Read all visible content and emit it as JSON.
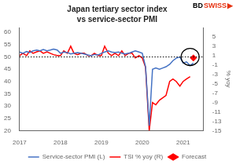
{
  "chart_data": {
    "type": "line",
    "title": "Japan tertiary sector index",
    "subtitle": "vs service-sector PMI",
    "y2label": "% yoy",
    "xlim": [
      2017.0,
      2021.5
    ],
    "xticks": [
      2017,
      2018,
      2019,
      2020,
      2021
    ],
    "ylim": [
      20,
      62
    ],
    "yticks": [
      20,
      25,
      30,
      35,
      40,
      45,
      50,
      55,
      60
    ],
    "y2lim": [
      -15,
      7
    ],
    "y2ticks": [
      -15,
      -13,
      -11,
      -9,
      -7,
      -5,
      -3,
      -1,
      1,
      3,
      5
    ],
    "grid": false,
    "legend": "bottom",
    "series": [
      {
        "name": "Service-sector PMI (L)",
        "type": "line",
        "color": "#4472C4",
        "axis": "y",
        "x": [
          2017.0,
          2017.08,
          2017.17,
          2017.25,
          2017.33,
          2017.42,
          2017.5,
          2017.58,
          2017.67,
          2017.75,
          2017.83,
          2017.92,
          2018.0,
          2018.08,
          2018.17,
          2018.25,
          2018.33,
          2018.42,
          2018.5,
          2018.58,
          2018.67,
          2018.75,
          2018.83,
          2018.92,
          2019.0,
          2019.08,
          2019.17,
          2019.25,
          2019.33,
          2019.42,
          2019.5,
          2019.58,
          2019.67,
          2019.75,
          2019.83,
          2019.92,
          2020.0,
          2020.08,
          2020.17,
          2020.25,
          2020.33,
          2020.42,
          2020.5,
          2020.58,
          2020.67,
          2020.75,
          2020.83,
          2020.92,
          2021.0,
          2021.08,
          2021.17,
          2021.25
        ],
        "values": [
          52.0,
          51.5,
          52.2,
          51.8,
          52.5,
          52.8,
          52.5,
          53.0,
          52.5,
          52.8,
          53.2,
          52.8,
          51.5,
          52.0,
          51.8,
          51.2,
          51.5,
          51.8,
          51.5,
          51.2,
          50.8,
          50.5,
          51.0,
          50.8,
          51.5,
          52.0,
          52.5,
          52.0,
          51.8,
          52.0,
          51.5,
          51.2,
          51.5,
          52.0,
          52.5,
          52.0,
          51.5,
          46.0,
          22.0,
          45.0,
          45.5,
          45.0,
          45.5,
          46.0,
          47.0,
          48.5,
          49.5,
          50.0,
          47.5,
          48.0,
          46.5,
          47.5
        ]
      },
      {
        "name": "TSI % yoy (R)",
        "type": "line",
        "color": "#FF0000",
        "axis": "y2",
        "x": [
          2017.0,
          2017.08,
          2017.17,
          2017.25,
          2017.33,
          2017.42,
          2017.5,
          2017.58,
          2017.67,
          2017.75,
          2017.83,
          2017.92,
          2018.0,
          2018.08,
          2018.17,
          2018.25,
          2018.33,
          2018.42,
          2018.5,
          2018.58,
          2018.67,
          2018.75,
          2018.83,
          2018.92,
          2019.0,
          2019.08,
          2019.17,
          2019.25,
          2019.33,
          2019.42,
          2019.5,
          2019.58,
          2019.67,
          2019.75,
          2019.83,
          2019.92,
          2020.0,
          2020.08,
          2020.17,
          2020.25,
          2020.33,
          2020.42,
          2020.5,
          2020.58,
          2020.67,
          2020.75,
          2020.83,
          2020.92,
          2021.0,
          2021.08,
          2021.17
        ],
        "values": [
          1.0,
          1.5,
          1.0,
          2.0,
          1.5,
          1.8,
          2.0,
          1.5,
          1.8,
          1.5,
          1.2,
          1.0,
          1.0,
          2.0,
          1.5,
          3.0,
          1.5,
          1.2,
          1.5,
          1.5,
          1.0,
          1.0,
          1.5,
          1.0,
          1.0,
          3.0,
          1.5,
          1.0,
          1.5,
          1.0,
          2.0,
          1.0,
          1.5,
          1.5,
          0.5,
          1.0,
          0.5,
          -1.5,
          -15.0,
          -9.0,
          -9.5,
          -8.5,
          -8.0,
          -7.5,
          -4.5,
          -4.0,
          -4.5,
          -5.5,
          -4.5,
          -4.0,
          -3.5
        ]
      },
      {
        "name": "Forecast",
        "type": "scatter",
        "marker": "diamond",
        "color": "#FF0000",
        "axis": "y2",
        "x": [
          2021.25
        ],
        "values": [
          0.5
        ]
      }
    ],
    "annotations": [
      {
        "type": "hline",
        "y": 50,
        "axis": "y",
        "line_style": "dotted",
        "color": "#000000"
      },
      {
        "type": "ellipse",
        "x": 2021.17,
        "y": 50,
        "rx": 0.22,
        "ry": 3.5,
        "axis": "y",
        "color": "#000000"
      },
      {
        "type": "text",
        "text": "BD",
        "color": "#000000"
      },
      {
        "type": "text",
        "text": "SWISS",
        "color": "#E63312"
      },
      {
        "type": "text",
        "text": "▶",
        "color": "#E63312"
      }
    ]
  }
}
